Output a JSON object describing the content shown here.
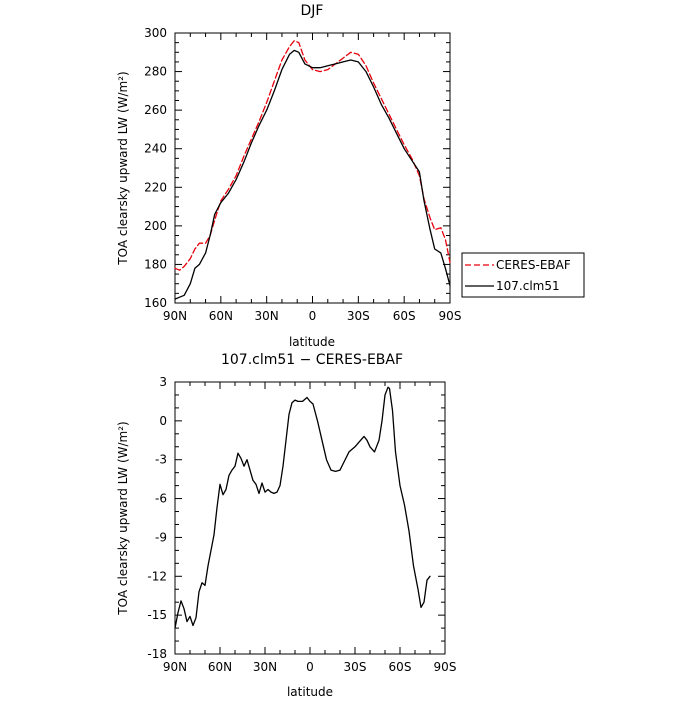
{
  "chart_data": [
    {
      "type": "line",
      "title": "DJF",
      "xlabel": "latitude",
      "ylabel": "TOA clearsky upward LW (W/m²)",
      "xlim": [
        90,
        -90
      ],
      "ylim": [
        160,
        300
      ],
      "x_ticks": [
        {
          "value": 90,
          "label": "90N"
        },
        {
          "value": 60,
          "label": "60N"
        },
        {
          "value": 30,
          "label": "30N"
        },
        {
          "value": 0,
          "label": "0"
        },
        {
          "value": -30,
          "label": "30S"
        },
        {
          "value": -60,
          "label": "60S"
        },
        {
          "value": -90,
          "label": "90S"
        }
      ],
      "y_ticks": [
        160,
        180,
        200,
        220,
        240,
        260,
        280,
        300
      ],
      "legend_position": "right, outside plot",
      "series": [
        {
          "name": "CERES-EBAF",
          "color": "#e8000b",
          "dash": "dashed",
          "points": [
            [
              90,
              178
            ],
            [
              87,
              177
            ],
            [
              84,
              179
            ],
            [
              80,
              183
            ],
            [
              77,
              188
            ],
            [
              74,
              191
            ],
            [
              70,
              191
            ],
            [
              67,
              195
            ],
            [
              64,
              203
            ],
            [
              60,
              213
            ],
            [
              55,
              219
            ],
            [
              50,
              226
            ],
            [
              45,
              236
            ],
            [
              40,
              245
            ],
            [
              35,
              254
            ],
            [
              30,
              264
            ],
            [
              25,
              275
            ],
            [
              20,
              286
            ],
            [
              15,
              293
            ],
            [
              12,
              296
            ],
            [
              9,
              295
            ],
            [
              5,
              286
            ],
            [
              0,
              281
            ],
            [
              -5,
              280
            ],
            [
              -10,
              281
            ],
            [
              -15,
              284
            ],
            [
              -20,
              287
            ],
            [
              -25,
              290
            ],
            [
              -30,
              289
            ],
            [
              -35,
              283
            ],
            [
              -40,
              274
            ],
            [
              -45,
              266
            ],
            [
              -50,
              258
            ],
            [
              -55,
              250
            ],
            [
              -60,
              242
            ],
            [
              -65,
              235
            ],
            [
              -70,
              226
            ],
            [
              -73,
              214
            ],
            [
              -77,
              204
            ],
            [
              -80,
              198
            ],
            [
              -84,
              199
            ],
            [
              -87,
              193
            ],
            [
              -90,
              181
            ]
          ]
        },
        {
          "name": "107.clm51",
          "color": "#000000",
          "dash": "solid",
          "points": [
            [
              90,
              162
            ],
            [
              87,
              163
            ],
            [
              84,
              164
            ],
            [
              80,
              170
            ],
            [
              77,
              178
            ],
            [
              74,
              180
            ],
            [
              70,
              186
            ],
            [
              67,
              195
            ],
            [
              64,
              206
            ],
            [
              60,
              212
            ],
            [
              55,
              217
            ],
            [
              50,
              224
            ],
            [
              45,
              233
            ],
            [
              40,
              243
            ],
            [
              35,
              252
            ],
            [
              30,
              260
            ],
            [
              25,
              270
            ],
            [
              20,
              281
            ],
            [
              15,
              289
            ],
            [
              12,
              291
            ],
            [
              9,
              290
            ],
            [
              5,
              284
            ],
            [
              0,
              282
            ],
            [
              -5,
              282
            ],
            [
              -10,
              283
            ],
            [
              -15,
              284
            ],
            [
              -20,
              285
            ],
            [
              -25,
              286
            ],
            [
              -30,
              285
            ],
            [
              -35,
              280
            ],
            [
              -40,
              272
            ],
            [
              -45,
              263
            ],
            [
              -50,
              256
            ],
            [
              -55,
              248
            ],
            [
              -60,
              240
            ],
            [
              -65,
              234
            ],
            [
              -70,
              228
            ],
            [
              -73,
              213
            ],
            [
              -77,
              198
            ],
            [
              -80,
              188
            ],
            [
              -84,
              186
            ],
            [
              -87,
              178
            ],
            [
              -90,
              169
            ]
          ]
        }
      ]
    },
    {
      "type": "line",
      "title": "107.clm51 − CERES-EBAF",
      "xlabel": "latitude",
      "ylabel": "TOA clearsky upward LW (W/m²)",
      "xlim": [
        90,
        -90
      ],
      "ylim": [
        -18,
        3
      ],
      "x_ticks": [
        {
          "value": 90,
          "label": "90N"
        },
        {
          "value": 60,
          "label": "60N"
        },
        {
          "value": 30,
          "label": "30N"
        },
        {
          "value": 0,
          "label": "0"
        },
        {
          "value": -30,
          "label": "30S"
        },
        {
          "value": -60,
          "label": "60S"
        },
        {
          "value": -90,
          "label": "90S"
        }
      ],
      "y_ticks": [
        -18,
        -15,
        -12,
        -9,
        -6,
        -3,
        0,
        3
      ],
      "series": [
        {
          "color": "#000000",
          "dash": "solid",
          "points": [
            [
              90,
              -16.0
            ],
            [
              88,
              -14.8
            ],
            [
              86,
              -13.9
            ],
            [
              84,
              -14.5
            ],
            [
              82,
              -15.5
            ],
            [
              80,
              -15.1
            ],
            [
              78,
              -15.8
            ],
            [
              76,
              -15.2
            ],
            [
              74,
              -13.2
            ],
            [
              72,
              -12.5
            ],
            [
              70,
              -12.7
            ],
            [
              68,
              -11.2
            ],
            [
              66,
              -10.0
            ],
            [
              64,
              -8.8
            ],
            [
              62,
              -6.7
            ],
            [
              60,
              -4.9
            ],
            [
              58,
              -5.7
            ],
            [
              56,
              -5.3
            ],
            [
              54,
              -4.2
            ],
            [
              52,
              -3.8
            ],
            [
              50,
              -3.5
            ],
            [
              48,
              -2.5
            ],
            [
              46,
              -2.9
            ],
            [
              44,
              -3.5
            ],
            [
              42,
              -3.0
            ],
            [
              40,
              -3.8
            ],
            [
              38,
              -4.6
            ],
            [
              36,
              -4.9
            ],
            [
              34,
              -5.6
            ],
            [
              32,
              -4.8
            ],
            [
              30,
              -5.5
            ],
            [
              28,
              -5.3
            ],
            [
              26,
              -5.5
            ],
            [
              24,
              -5.6
            ],
            [
              22,
              -5.5
            ],
            [
              20,
              -5.0
            ],
            [
              18,
              -3.5
            ],
            [
              16,
              -1.5
            ],
            [
              14,
              0.5
            ],
            [
              12,
              1.4
            ],
            [
              10,
              1.6
            ],
            [
              8,
              1.5
            ],
            [
              5,
              1.5
            ],
            [
              2,
              1.8
            ],
            [
              0,
              1.5
            ],
            [
              -2,
              1.3
            ],
            [
              -5,
              0.0
            ],
            [
              -8,
              -1.5
            ],
            [
              -11,
              -3.0
            ],
            [
              -14,
              -3.8
            ],
            [
              -17,
              -3.9
            ],
            [
              -20,
              -3.8
            ],
            [
              -23,
              -3.1
            ],
            [
              -26,
              -2.4
            ],
            [
              -30,
              -2.0
            ],
            [
              -33,
              -1.6
            ],
            [
              -36,
              -1.2
            ],
            [
              -38,
              -1.5
            ],
            [
              -40,
              -2.0
            ],
            [
              -43,
              -2.4
            ],
            [
              -46,
              -1.5
            ],
            [
              -48,
              0.0
            ],
            [
              -50,
              2.0
            ],
            [
              -52,
              2.6
            ],
            [
              -53,
              2.5
            ],
            [
              -55,
              0.8
            ],
            [
              -57,
              -2.4
            ],
            [
              -60,
              -5.0
            ],
            [
              -63,
              -6.5
            ],
            [
              -66,
              -8.5
            ],
            [
              -69,
              -11.2
            ],
            [
              -72,
              -13.0
            ],
            [
              -74,
              -14.4
            ],
            [
              -76,
              -14.0
            ],
            [
              -78,
              -12.3
            ],
            [
              -80,
              -12.0
            ]
          ]
        }
      ]
    }
  ]
}
